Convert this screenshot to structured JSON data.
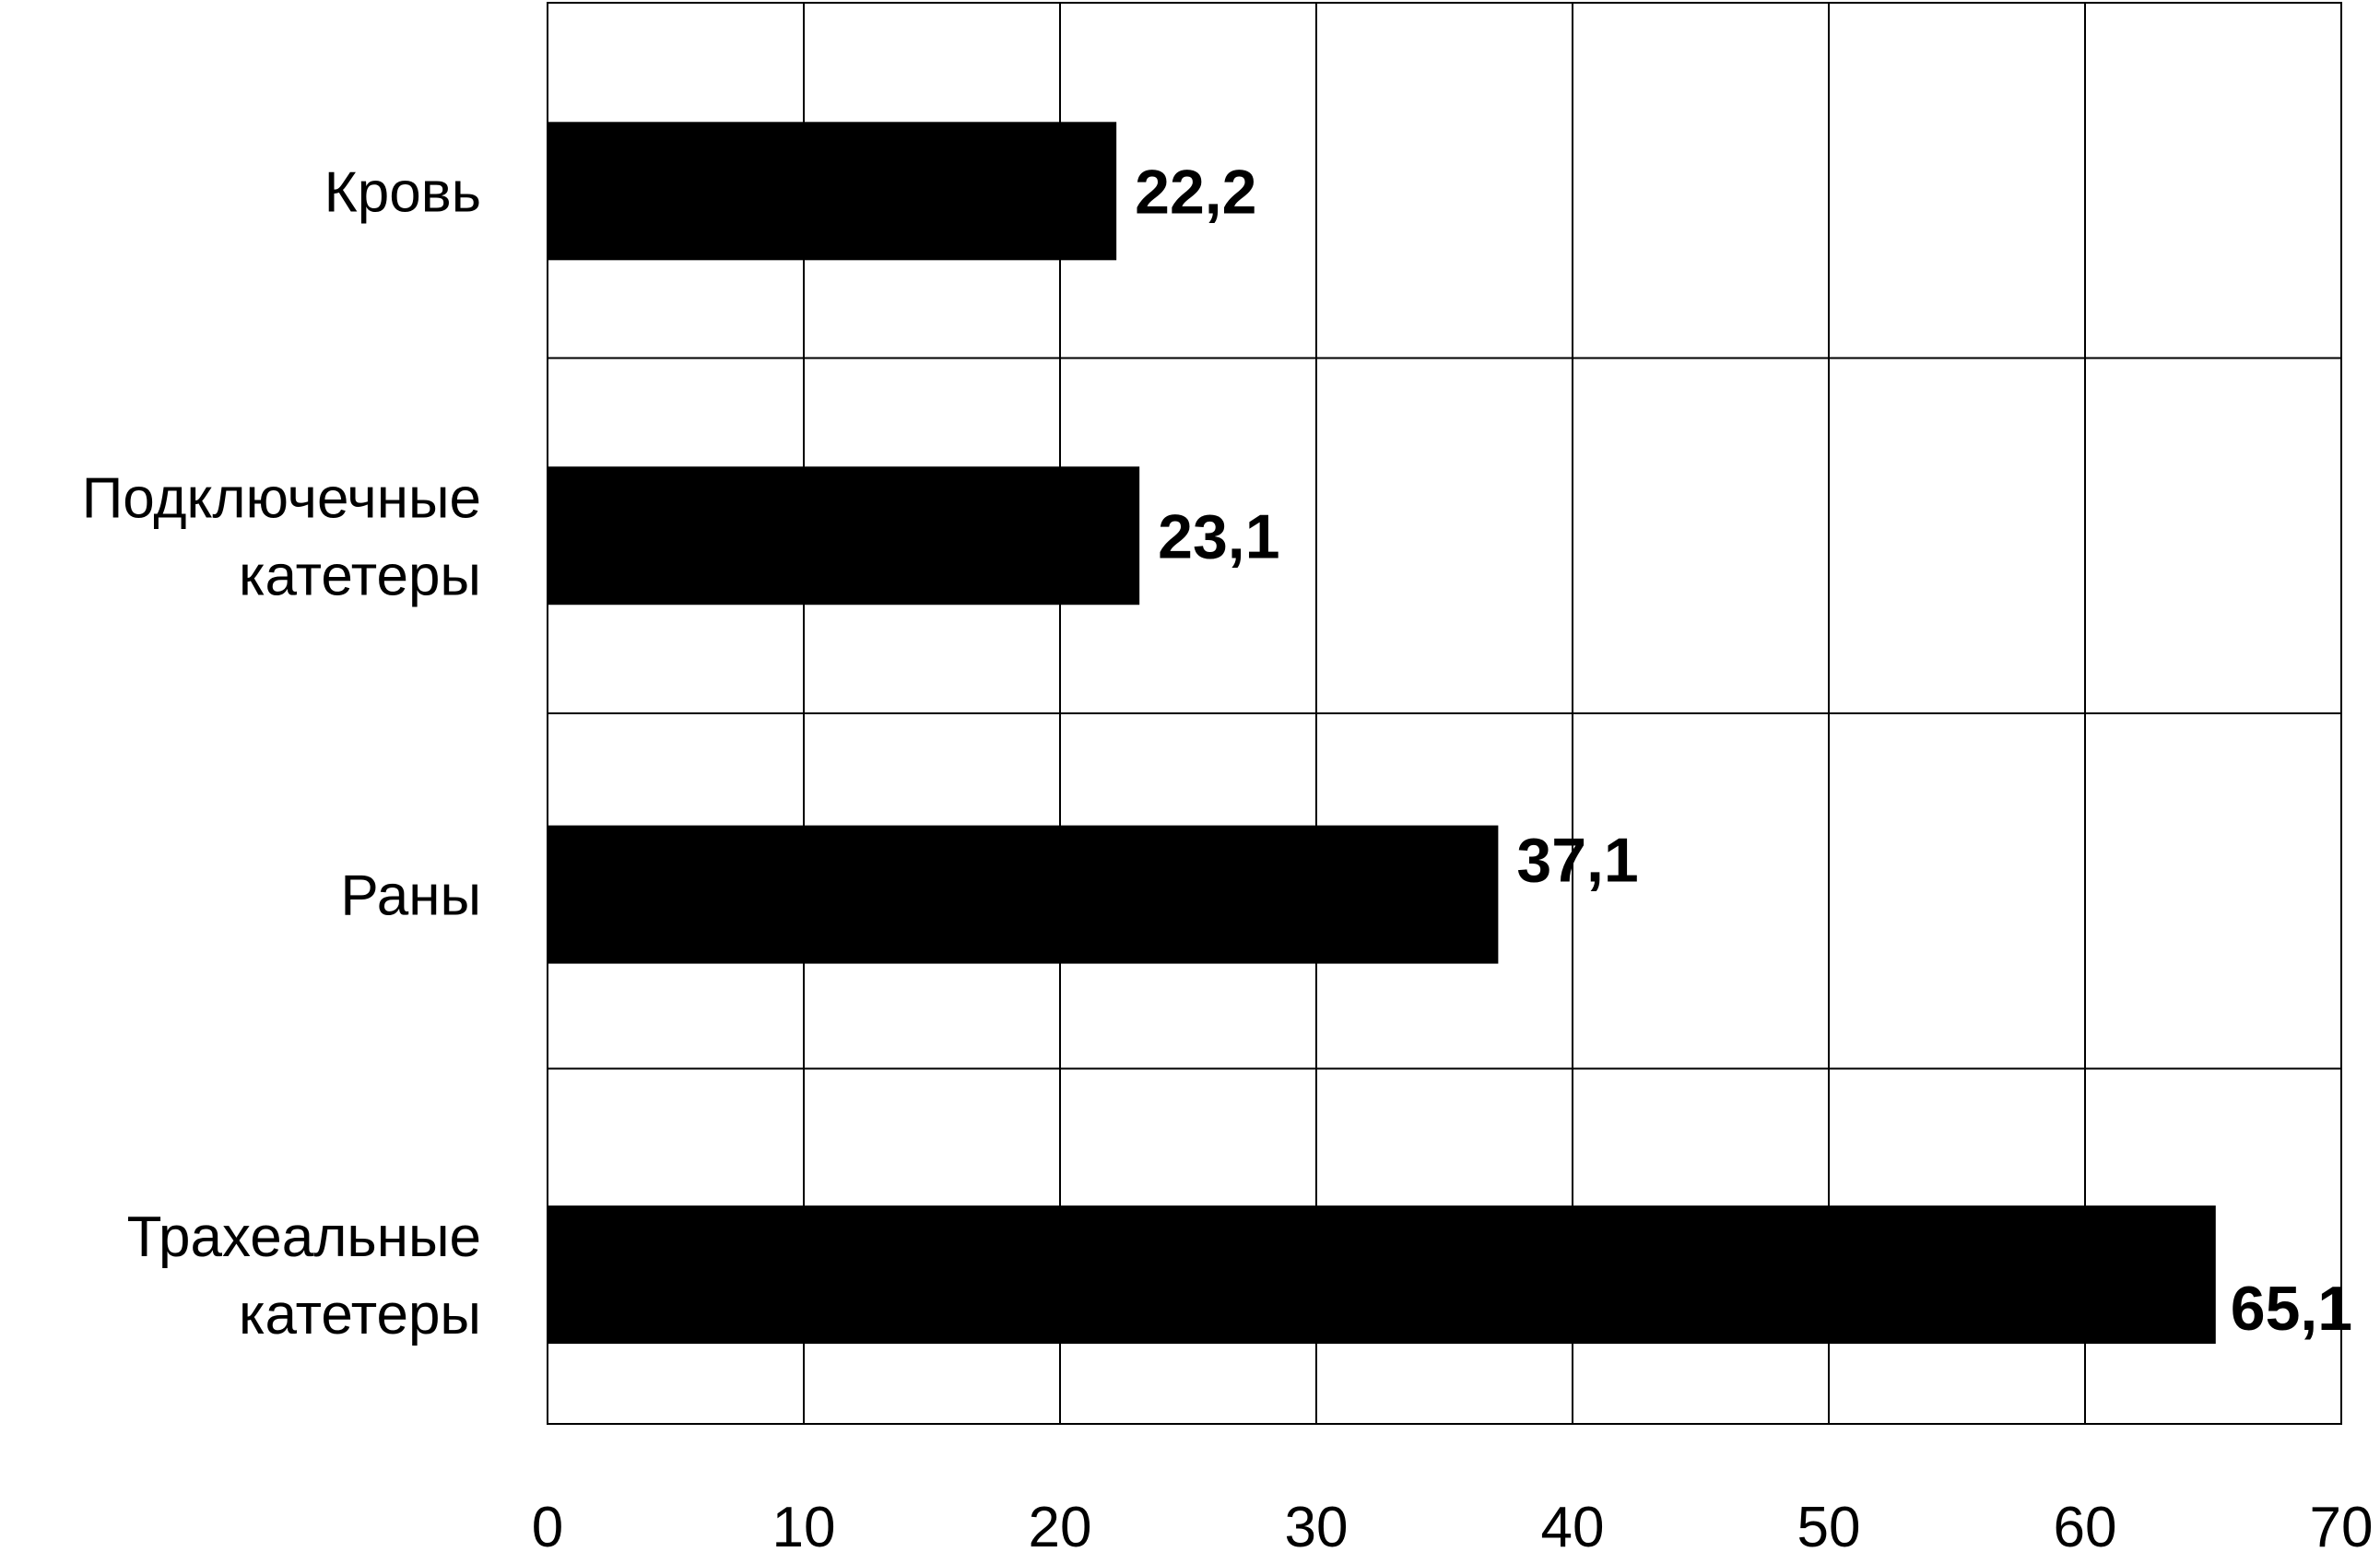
{
  "chart_data": {
    "type": "bar",
    "orientation": "horizontal",
    "categories": [
      [
        "Кровь"
      ],
      [
        "Подключечные",
        "катетеры"
      ],
      [
        "Раны"
      ],
      [
        "Трахеальные",
        "катетеры"
      ]
    ],
    "values": [
      22.2,
      23.1,
      37.1,
      65.1
    ],
    "value_labels": [
      "22,2",
      "23,1",
      "37,1",
      "65,1"
    ],
    "x_ticks": [
      "0",
      "10",
      "20",
      "30",
      "40",
      "50",
      "60",
      "70"
    ],
    "xlim": [
      0,
      70
    ],
    "grid": true,
    "bar_color": "#000000",
    "title": "",
    "xlabel": "",
    "ylabel": ""
  }
}
